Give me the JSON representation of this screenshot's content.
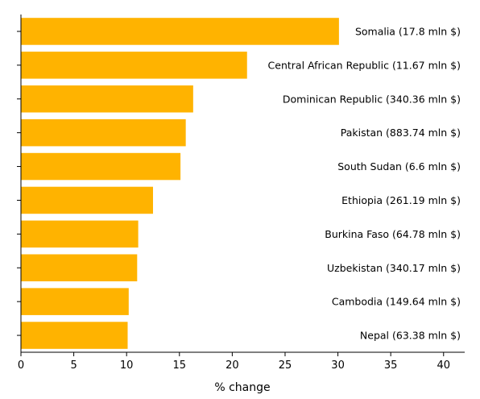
{
  "chart_data": {
    "type": "bar",
    "orientation": "horizontal",
    "categories": [
      "Somalia (17.8 mln $)",
      "Central African Republic (11.67 mln $)",
      "Dominican Republic (340.36 mln $)",
      "Pakistan (883.74 mln $)",
      "South Sudan (6.6 mln $)",
      "Ethiopia (261.19 mln $)",
      "Burkina Faso (64.78 mln $)",
      "Uzbekistan (340.17 mln $)",
      "Cambodia (149.64 mln $)",
      "Nepal (63.38 mln $)"
    ],
    "values": [
      30.1,
      21.4,
      16.3,
      15.6,
      15.1,
      12.5,
      11.1,
      11.0,
      10.2,
      10.1
    ],
    "xlabel": "% change",
    "ylabel": "",
    "title": "",
    "xlim": [
      0,
      42
    ],
    "xticks": [
      "0",
      "5",
      "10",
      "15",
      "20",
      "25",
      "30",
      "35",
      "40"
    ],
    "bar_color": "#FFB300",
    "grid": false,
    "label_placement": "inside-right"
  }
}
